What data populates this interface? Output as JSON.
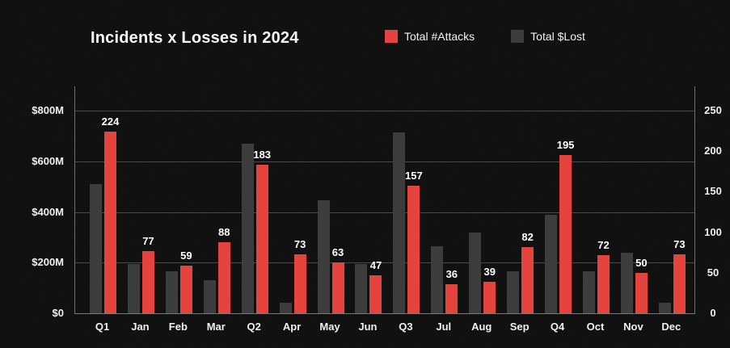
{
  "title": "Incidents x Losses in 2024",
  "legend": [
    {
      "label": "Total #Attacks",
      "color": "#e5433d"
    },
    {
      "label": "Total $Lost",
      "color": "#3d3d3d"
    }
  ],
  "colors": {
    "background": "#0d0c0c",
    "attacks_red": "#e5433d",
    "lost_gray": "#3d3d3d",
    "gridline": "#4a4a4a",
    "axis_line": "#6e6e6e",
    "text": "#f2f2f2"
  },
  "chart_data": {
    "type": "bar",
    "title": "Incidents x Losses in 2024",
    "categories": [
      "Q1",
      "Jan",
      "Feb",
      "Mar",
      "Q2",
      "Apr",
      "May",
      "Jun",
      "Q3",
      "Jul",
      "Aug",
      "Sep",
      "Q4",
      "Oct",
      "Nov",
      "Dec"
    ],
    "series": [
      {
        "name": "Total #Attacks",
        "axis": "right",
        "color": "#e5433d",
        "values": [
          224,
          77,
          59,
          88,
          183,
          73,
          63,
          47,
          157,
          36,
          39,
          82,
          195,
          72,
          50,
          73
        ],
        "data_labels_shown": true
      },
      {
        "name": "Total $Lost",
        "axis": "left",
        "color": "#3d3d3d",
        "unit": "USD millions (estimated from gridlines)",
        "values": [
          510,
          195,
          165,
          130,
          670,
          40,
          445,
          195,
          715,
          265,
          320,
          165,
          390,
          165,
          240,
          40
        ],
        "data_labels_shown": false
      }
    ],
    "left_axis": {
      "tick_labels": [
        "$800M",
        "$600M",
        "$400M",
        "$200M",
        "$0"
      ],
      "tick_values": [
        800,
        600,
        400,
        200,
        0
      ],
      "range": [
        0,
        800
      ]
    },
    "right_axis": {
      "tick_labels": [
        "250",
        "200",
        "150",
        "100",
        "50",
        "0"
      ],
      "tick_values": [
        250,
        200,
        150,
        100,
        50,
        0
      ],
      "range": [
        0,
        250
      ]
    },
    "grid": true,
    "legend_position": "top"
  }
}
